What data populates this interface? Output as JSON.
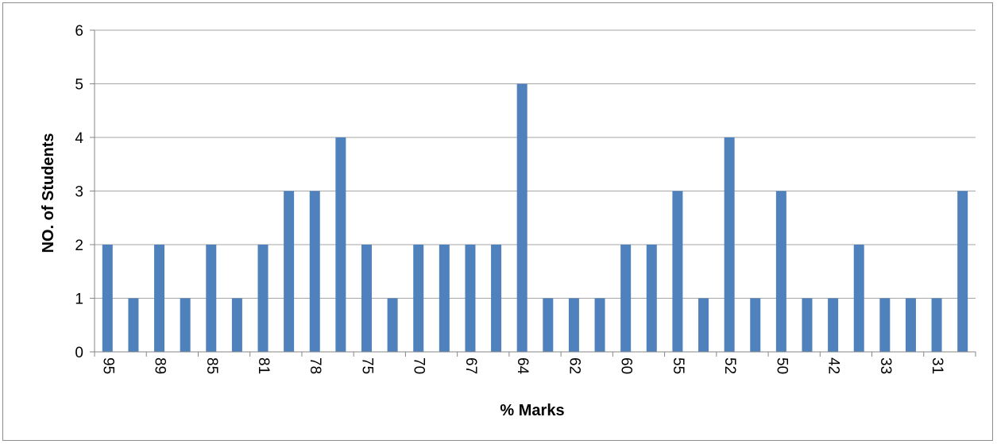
{
  "chart_data": {
    "type": "bar",
    "title": "",
    "xlabel": "% Marks",
    "ylabel": "NO. of Students",
    "ylim": [
      0,
      6
    ],
    "yticks": [
      0,
      1,
      2,
      3,
      4,
      5,
      6
    ],
    "grid": true,
    "legend": "none",
    "bar_color": "#4F81BD",
    "grid_color": "#a6a6a6",
    "categories": [
      "95",
      "",
      "89",
      "",
      "85",
      "",
      "81",
      "",
      "78",
      "",
      "75",
      "",
      "70",
      "",
      "67",
      "",
      "64",
      "",
      "62",
      "",
      "60",
      "",
      "55",
      "",
      "52",
      "",
      "50",
      "",
      "42",
      "",
      "33",
      "",
      "31",
      ""
    ],
    "values": [
      2,
      1,
      2,
      1,
      2,
      1,
      2,
      3,
      3,
      4,
      2,
      1,
      2,
      2,
      2,
      2,
      5,
      1,
      1,
      1,
      2,
      2,
      3,
      1,
      4,
      1,
      3,
      1,
      1,
      2,
      1,
      1,
      1,
      3
    ]
  }
}
